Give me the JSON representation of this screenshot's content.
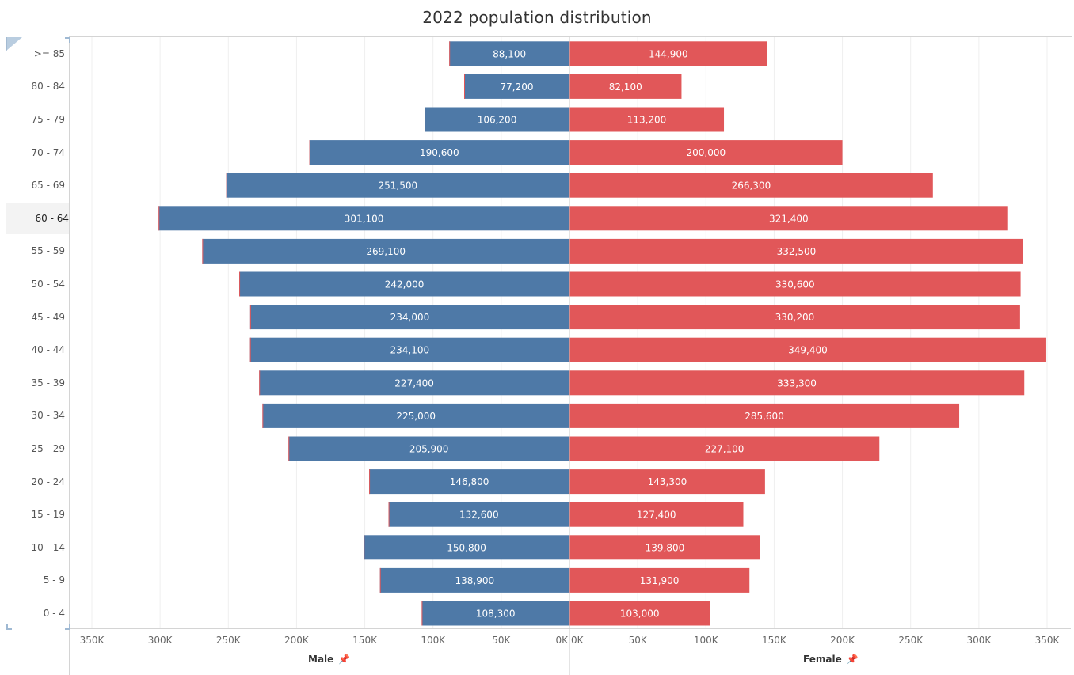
{
  "chart_data": {
    "type": "bar",
    "title": "2022 population distribution",
    "categories": [
      ">= 85",
      "80 - 84",
      "75 - 79",
      "70 - 74",
      "65 - 69",
      "60 - 64",
      "55 - 59",
      "50 - 54",
      "45 - 49",
      "40 - 44",
      "35 - 39",
      "30 - 34",
      "25 - 29",
      "20 - 24",
      "15 - 19",
      "10 - 14",
      "5 - 9",
      "0 - 4"
    ],
    "series": [
      {
        "name": "Male",
        "color": "#4e79a7",
        "values": [
          88100,
          77200,
          106200,
          190600,
          251500,
          301100,
          269100,
          242000,
          234000,
          234100,
          227400,
          225000,
          205900,
          146800,
          132600,
          150800,
          138900,
          108300
        ],
        "labels": [
          "88,100",
          "77,200",
          "106,200",
          "190,600",
          "251,500",
          "301,100",
          "269,100",
          "242,000",
          "234,000",
          "234,100",
          "227,400",
          "225,000",
          "205,900",
          "146,800",
          "132,600",
          "150,800",
          "138,900",
          "108,300"
        ]
      },
      {
        "name": "Female",
        "color": "#e15759",
        "values": [
          144900,
          82100,
          113200,
          200000,
          266300,
          321400,
          332500,
          330600,
          330200,
          349400,
          333300,
          285600,
          227100,
          143300,
          127400,
          139800,
          131900,
          103000
        ],
        "labels": [
          "144,900",
          "82,100",
          "113,200",
          "200,000",
          "266,300",
          "321,400",
          "332,500",
          "330,600",
          "330,200",
          "349,400",
          "333,300",
          "285,600",
          "227,100",
          "143,300",
          "127,400",
          "139,800",
          "131,900",
          "103,000"
        ]
      }
    ],
    "xlim": [
      0,
      350000
    ],
    "x_ticks_male": [
      "350K",
      "300K",
      "250K",
      "200K",
      "150K",
      "100K",
      "50K",
      "0K"
    ],
    "x_ticks_female": [
      "0K",
      "50K",
      "100K",
      "150K",
      "200K",
      "250K",
      "300K",
      "350K"
    ],
    "xlabel_left": "Male",
    "xlabel_right": "Female",
    "selected_category": "60 - 64",
    "grid": true
  },
  "pin_icon": "📌"
}
